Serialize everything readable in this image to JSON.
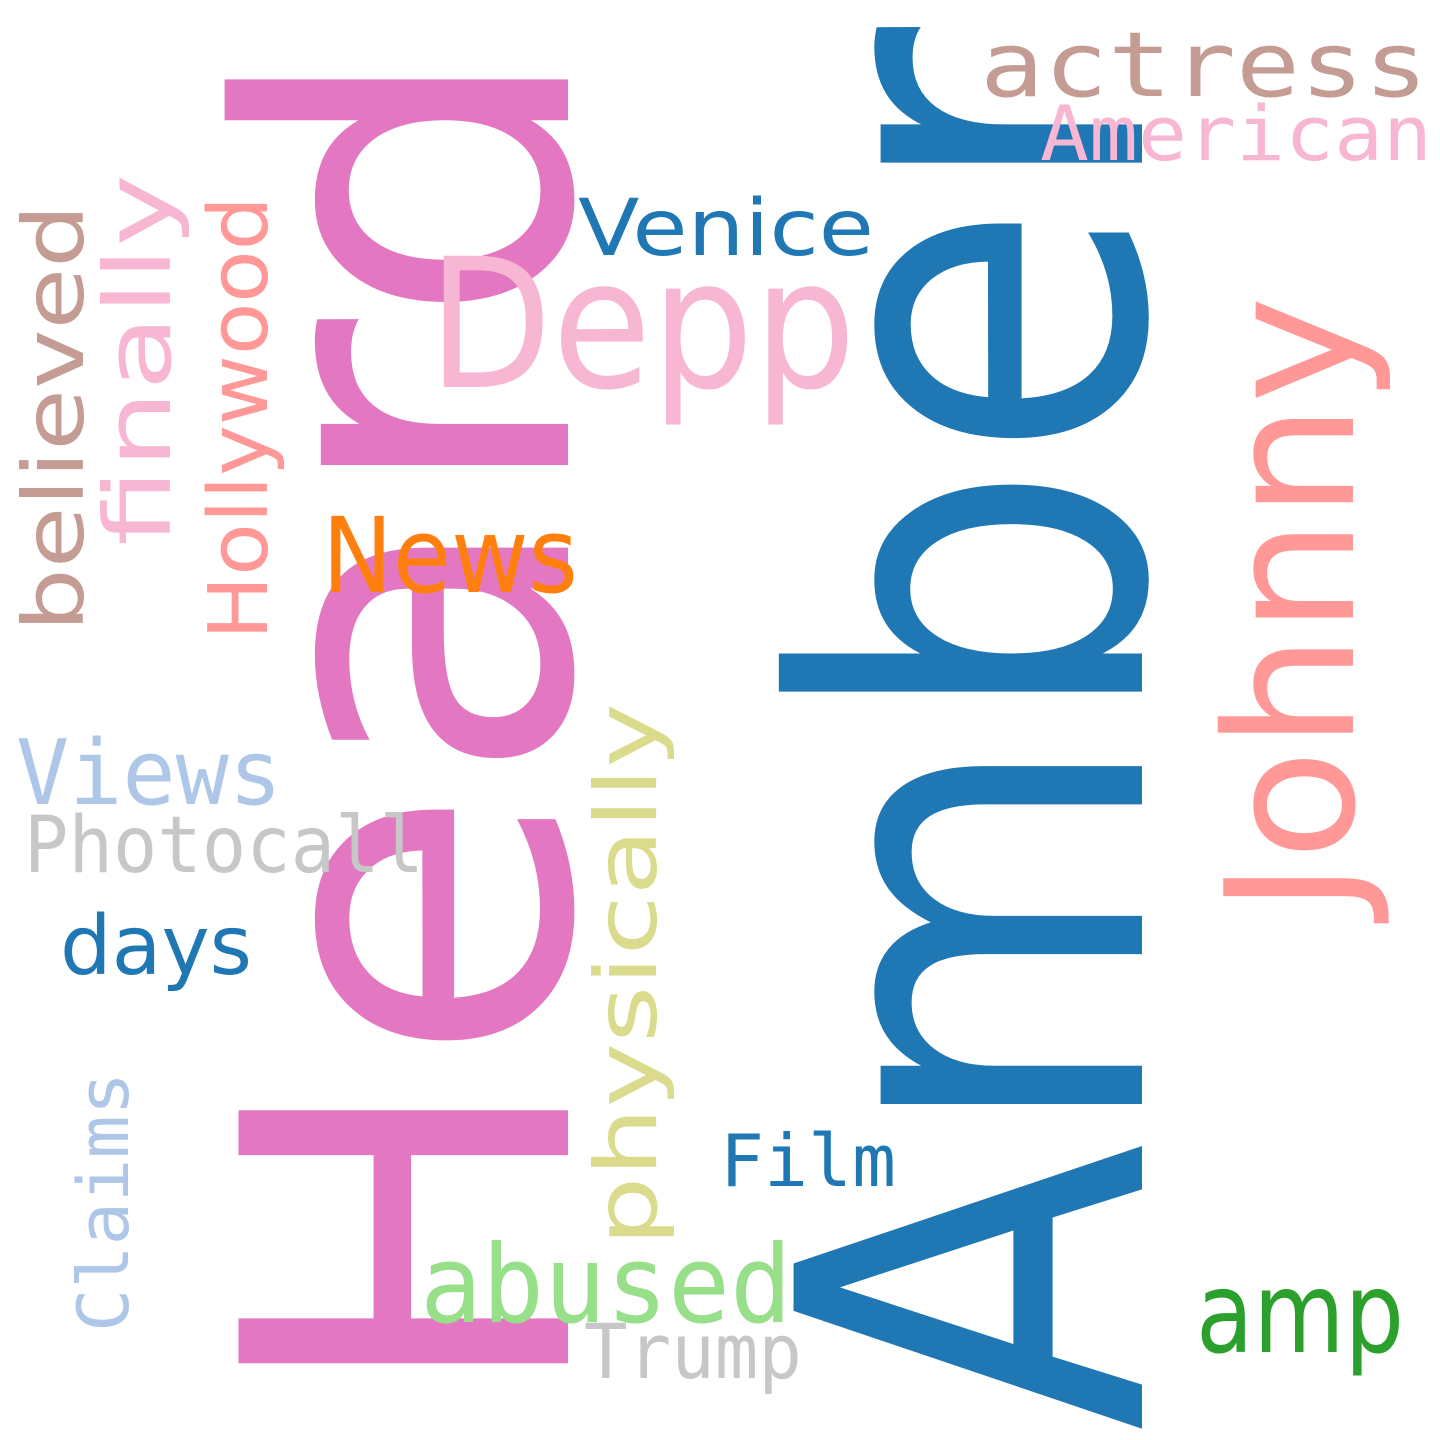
{
  "word_cloud": {
    "background": "#ffffff",
    "words": [
      {
        "id": "heard",
        "text": "Heard",
        "color": "#e377c2",
        "vertical": true
      },
      {
        "id": "amber",
        "text": "Amber",
        "color": "#1f77b4",
        "vertical": true
      },
      {
        "id": "depp",
        "text": "Depp",
        "color": "#f7b6d2",
        "vertical": false
      },
      {
        "id": "johnny",
        "text": "Johnny",
        "color": "#ff9896",
        "vertical": true
      },
      {
        "id": "actress",
        "text": "actress",
        "color": "#c49c94",
        "vertical": false
      },
      {
        "id": "american",
        "text": "American",
        "color": "#f7b6d2",
        "vertical": false
      },
      {
        "id": "venice",
        "text": "Venice",
        "color": "#1f77b4",
        "vertical": false
      },
      {
        "id": "news",
        "text": "News",
        "color": "#ff7f0e",
        "vertical": false
      },
      {
        "id": "believed",
        "text": "believed",
        "color": "#c49c94",
        "vertical": true
      },
      {
        "id": "finally",
        "text": "finally",
        "color": "#f7b6d2",
        "vertical": true
      },
      {
        "id": "hollywood",
        "text": "Hollywood",
        "color": "#ff9896",
        "vertical": true
      },
      {
        "id": "views",
        "text": "Views",
        "color": "#aec7e8",
        "vertical": false
      },
      {
        "id": "photocall",
        "text": "Photocall",
        "color": "#c7c7c7",
        "vertical": false
      },
      {
        "id": "days",
        "text": "days",
        "color": "#1f77b4",
        "vertical": false
      },
      {
        "id": "physically",
        "text": "physically",
        "color": "#dbdb8d",
        "vertical": true
      },
      {
        "id": "claims",
        "text": "Claims",
        "color": "#aec7e8",
        "vertical": true
      },
      {
        "id": "film",
        "text": "Film",
        "color": "#1f77b4",
        "vertical": false
      },
      {
        "id": "abused",
        "text": "abused",
        "color": "#98df8a",
        "vertical": false
      },
      {
        "id": "trump",
        "text": "Trump",
        "color": "#c7c7c7",
        "vertical": false
      },
      {
        "id": "amp",
        "text": "amp",
        "color": "#2ca02c",
        "vertical": false
      }
    ]
  }
}
